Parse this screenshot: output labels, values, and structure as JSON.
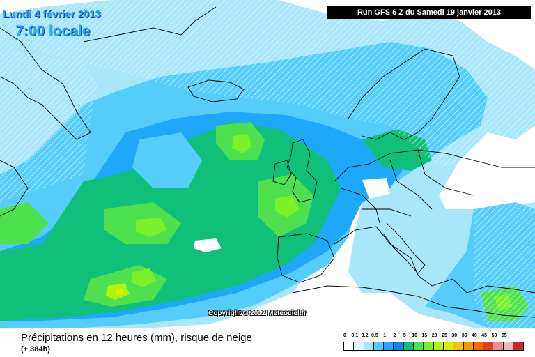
{
  "header": {
    "date_text": "Lundi 4 février 2013",
    "time_text": "7:00 locale",
    "run_text": "Run GFS 6 Z du Samedi 19 janvier 2013"
  },
  "map": {
    "copyright": "Copyright © 2012 Meteociel.fr"
  },
  "footer": {
    "title": "Précipitations en 12 heures (mm), risque de neige",
    "subtitle": "(+ 384h)"
  },
  "legend": {
    "labels": [
      "0",
      "0.1",
      "0.2",
      "0.5",
      "1",
      "2",
      "5",
      "10",
      "15",
      "20",
      "25",
      "30",
      "35",
      "40",
      "45",
      "50",
      "55"
    ],
    "colors": [
      "#ffffff",
      "#e0f6ff",
      "#a7e6fb",
      "#55cdfb",
      "#1da8fb",
      "#0b86e6",
      "#10c07a",
      "#4ee04e",
      "#7af02a",
      "#b2f20c",
      "#d8f000",
      "#f0c800",
      "#f09600",
      "#f06a00",
      "#e04020",
      "#e89090",
      "#f0b8b8",
      "#c82828"
    ]
  }
}
